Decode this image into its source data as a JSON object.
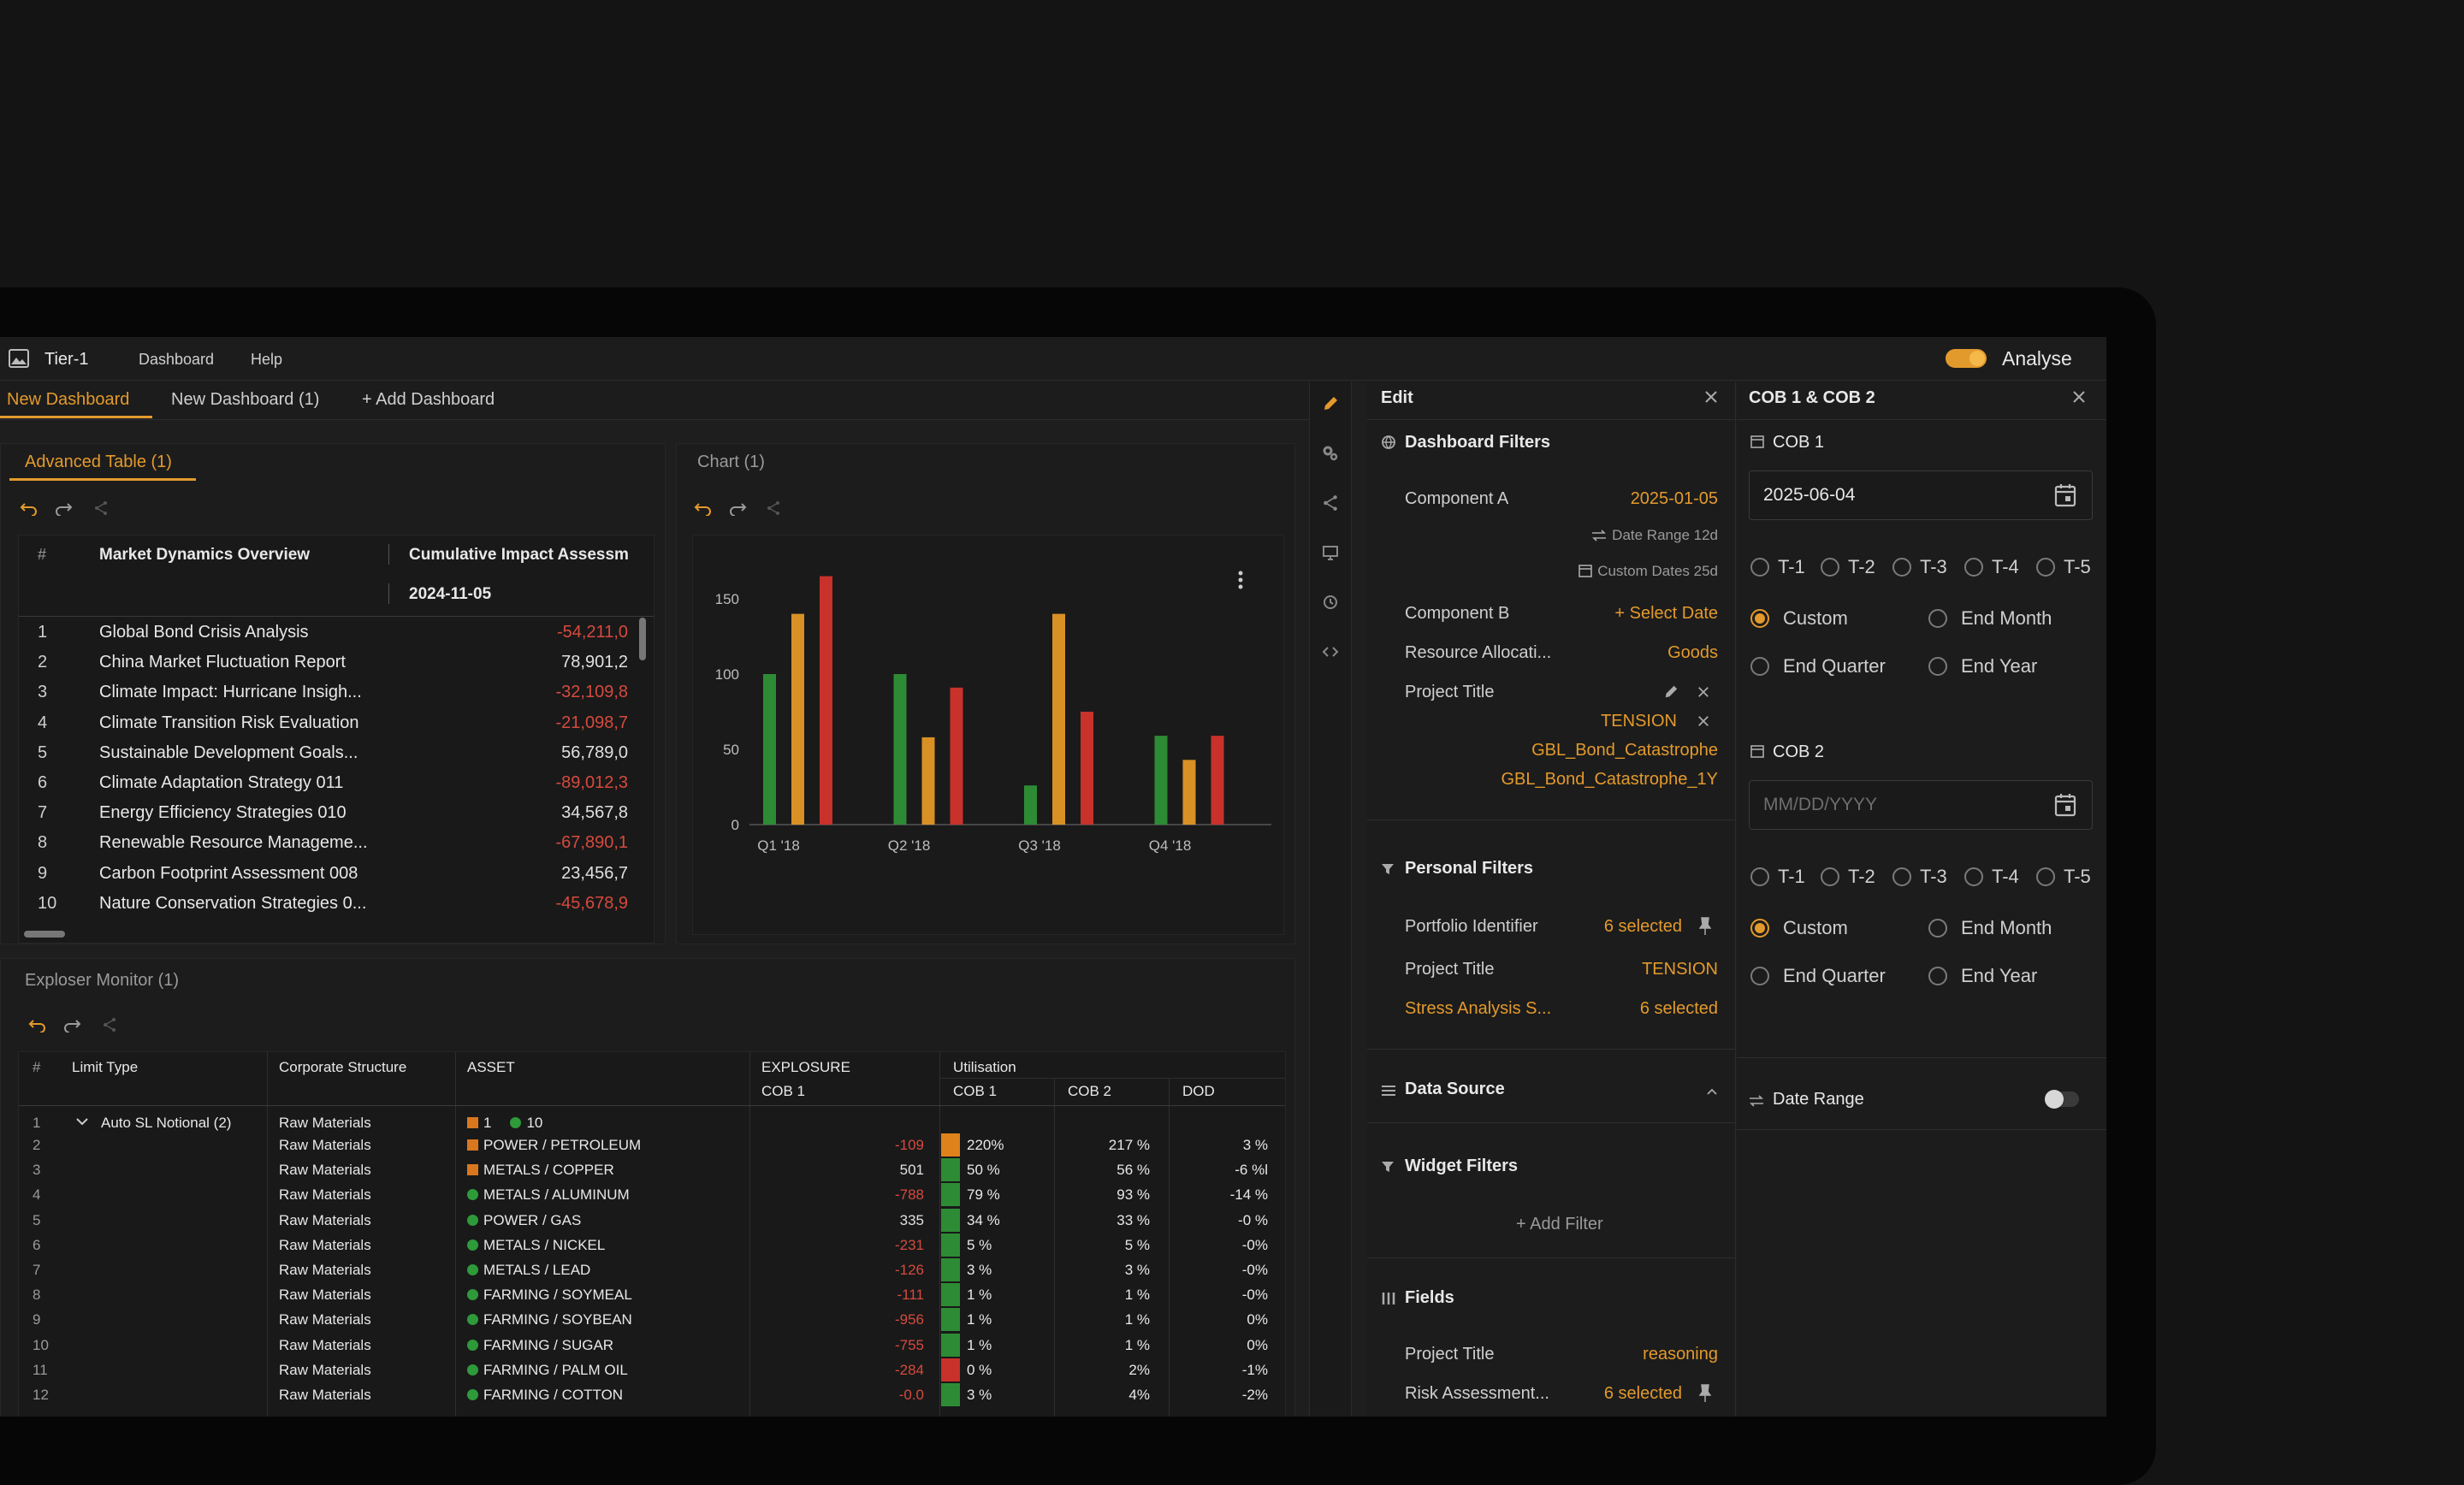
{
  "app": {
    "title": "Tier-1",
    "menu": [
      "Dashboard",
      "Help"
    ],
    "analyse_label": "Analyse"
  },
  "tabs": {
    "items": [
      "New Dashboard",
      "New Dashboard (1)"
    ],
    "add_label": "+ Add Dashboard"
  },
  "advanced_table": {
    "title": "Advanced Table (1)",
    "headers": {
      "num": "#",
      "col1": "Market Dynamics Overview",
      "col2": "Cumulative Impact Assessm",
      "date": "2024-11-05"
    },
    "rows": [
      {
        "n": "1",
        "name": "Global Bond Crisis Analysis",
        "value": "-54,211,0",
        "neg": true
      },
      {
        "n": "2",
        "name": "China Market Fluctuation Report",
        "value": "78,901,2",
        "neg": false
      },
      {
        "n": "3",
        "name": "Climate Impact: Hurricane Insigh...",
        "value": "-32,109,8",
        "neg": true
      },
      {
        "n": "4",
        "name": "Climate Transition Risk Evaluation",
        "value": "-21,098,7",
        "neg": true
      },
      {
        "n": "5",
        "name": "Sustainable Development Goals...",
        "value": "56,789,0",
        "neg": false
      },
      {
        "n": "6",
        "name": "Climate Adaptation Strategy 011",
        "value": "-89,012,3",
        "neg": true
      },
      {
        "n": "7",
        "name": "Energy Efficiency Strategies 010",
        "value": "34,567,8",
        "neg": false
      },
      {
        "n": "8",
        "name": "Renewable Resource Manageme...",
        "value": "-67,890,1",
        "neg": true
      },
      {
        "n": "9",
        "name": "Carbon Footprint Assessment 008",
        "value": "23,456,7",
        "neg": false
      },
      {
        "n": "10",
        "name": "Nature Conservation Strategies 0...",
        "value": "-45,678,9",
        "neg": true
      }
    ]
  },
  "chart_panel": {
    "title": "Chart (1)"
  },
  "chart_data": {
    "type": "bar",
    "categories": [
      "Q1 '18",
      "Q2 '18",
      "Q3 '18",
      "Q4 '18"
    ],
    "series": [
      {
        "color": "#2e8b35",
        "values": [
          100,
          100,
          26,
          59
        ]
      },
      {
        "color": "#d99025",
        "values": [
          140,
          58,
          140,
          43
        ]
      },
      {
        "color": "#c9312b",
        "values": [
          165,
          91,
          75,
          59
        ]
      }
    ],
    "yticks": [
      0,
      50,
      100,
      150
    ],
    "ylim": [
      0,
      175
    ]
  },
  "exposure_monitor": {
    "title": "Exploser Monitor (1)",
    "headers": {
      "num": "#",
      "limit_type": "Limit Type",
      "corp": "Corporate Structure",
      "asset": "ASSET",
      "exposure": "EXPLOSURE",
      "exp_cob1": "COB 1",
      "util": "Utilisation",
      "util_cob1": "COB 1",
      "util_cob2": "COB 2",
      "dod": "DOD"
    },
    "group": {
      "n": "1",
      "label": "Auto SL Notional (2)",
      "corp": "Raw Materials",
      "count_orange": "1",
      "count_green": "10"
    },
    "rows": [
      {
        "n": "2",
        "corp": "Raw Materials",
        "asset": "POWER / PETROLEUM",
        "asset_color": "#d9771f",
        "asset_shape": "sq",
        "exp": "-109",
        "exp_neg": true,
        "bar": "#e0821c",
        "u1": "220%",
        "u2": "217 %",
        "dod": "3 %"
      },
      {
        "n": "3",
        "corp": "Raw Materials",
        "asset": "METALS / COPPER",
        "asset_color": "#d9771f",
        "asset_shape": "sq",
        "exp": "501",
        "exp_neg": false,
        "bar": "#2e8b35",
        "u1": "50 %",
        "u2": "56 %",
        "dod": "-6 %l"
      },
      {
        "n": "4",
        "corp": "Raw Materials",
        "asset": "METALS / ALUMINUM",
        "asset_color": "#2e9a3a",
        "asset_shape": "dot",
        "exp": "-788",
        "exp_neg": true,
        "bar": "#2e8b35",
        "u1": "79 %",
        "u2": "93 %",
        "dod": "-14 %"
      },
      {
        "n": "5",
        "corp": "Raw Materials",
        "asset": "POWER / GAS",
        "asset_color": "#2e9a3a",
        "asset_shape": "dot",
        "exp": "335",
        "exp_neg": false,
        "bar": "#2e8b35",
        "u1": "34 %",
        "u2": "33 %",
        "dod": "-0 %"
      },
      {
        "n": "6",
        "corp": "Raw Materials",
        "asset": "METALS / NICKEL",
        "asset_color": "#2e9a3a",
        "asset_shape": "dot",
        "exp": "-231",
        "exp_neg": true,
        "bar": "#2e8b35",
        "u1": "5 %",
        "u2": "5 %",
        "dod": "-0%"
      },
      {
        "n": "7",
        "corp": "Raw Materials",
        "asset": "METALS / LEAD",
        "asset_color": "#2e9a3a",
        "asset_shape": "dot",
        "exp": "-126",
        "exp_neg": true,
        "bar": "#2e8b35",
        "u1": "3 %",
        "u2": "3 %",
        "dod": "-0%"
      },
      {
        "n": "8",
        "corp": "Raw Materials",
        "asset": "FARMING / SOYMEAL",
        "asset_color": "#2e9a3a",
        "asset_shape": "dot",
        "exp": "-111",
        "exp_neg": true,
        "bar": "#2e8b35",
        "u1": "1 %",
        "u2": "1 %",
        "dod": "-0%"
      },
      {
        "n": "9",
        "corp": "Raw Materials",
        "asset": "FARMING / SOYBEAN",
        "asset_color": "#2e9a3a",
        "asset_shape": "dot",
        "exp": "-956",
        "exp_neg": true,
        "bar": "#2e8b35",
        "u1": "1 %",
        "u2": "1 %",
        "dod": "0%"
      },
      {
        "n": "10",
        "corp": "Raw Materials",
        "asset": "FARMING / SUGAR",
        "asset_color": "#2e9a3a",
        "asset_shape": "dot",
        "exp": "-755",
        "exp_neg": true,
        "bar": "#2e8b35",
        "u1": "1 %",
        "u2": "1 %",
        "dod": "0%"
      },
      {
        "n": "11",
        "corp": "Raw Materials",
        "asset": "FARMING / PALM OIL",
        "asset_color": "#2e9a3a",
        "asset_shape": "dot",
        "exp": "-284",
        "exp_neg": true,
        "bar": "#c9312b",
        "u1": "0 %",
        "u2": "2%",
        "dod": "-1%"
      },
      {
        "n": "12",
        "corp": "Raw Materials",
        "asset": "FARMING / COTTON",
        "asset_color": "#2e9a3a",
        "asset_shape": "dot",
        "exp": "-0.0",
        "exp_neg": true,
        "bar": "#2e8b35",
        "u1": "3 %",
        "u2": "4%",
        "dod": "-2%"
      }
    ]
  },
  "edit_panel": {
    "title": "Edit",
    "dashboard_filters": "Dashboard Filters",
    "component_a": {
      "label": "Component A",
      "value": "2025-01-05"
    },
    "date_range": "Date Range 12d",
    "custom_dates": "Custom Dates 25d",
    "component_b": {
      "label": "Component B",
      "value": "+ Select Date"
    },
    "resource": {
      "label": "Resource Allocati...",
      "value": "Goods"
    },
    "project_title": {
      "label": "Project Title",
      "values": [
        "TENSION",
        "GBL_Bond_Catastrophe",
        "GBL_Bond_Catastrophe_1Y"
      ]
    },
    "personal_filters": "Personal Filters",
    "portfolio": {
      "label": "Portfolio Identifier",
      "value": "6 selected"
    },
    "project_title2": {
      "label": "Project Title",
      "value": "TENSION"
    },
    "stress": {
      "label": "Stress Analysis S...",
      "value": "6 selected"
    },
    "data_source": "Data Source",
    "widget_filters": "Widget Filters",
    "add_filter": "+ Add Filter",
    "fields": "Fields",
    "field_project": {
      "label": "Project Title",
      "value": "reasoning"
    },
    "field_risk": {
      "label": "Risk Assessment...",
      "value": "6 selected"
    }
  },
  "cob_panel": {
    "title": "COB 1 & COB 2",
    "cob1": {
      "label": "COB 1",
      "value": "2025-06-04"
    },
    "cob2": {
      "label": "COB 2",
      "placeholder": "MM/DD/YYYY"
    },
    "t_options": [
      "T-1",
      "T-2",
      "T-3",
      "T-4",
      "T-5"
    ],
    "period_options": [
      "Custom",
      "End Month",
      "End Quarter",
      "End Year"
    ],
    "date_range": "Date Range"
  },
  "colors": {
    "accent": "#e39a2c",
    "negative": "#d64a3e",
    "positive": "#2e8b35"
  }
}
